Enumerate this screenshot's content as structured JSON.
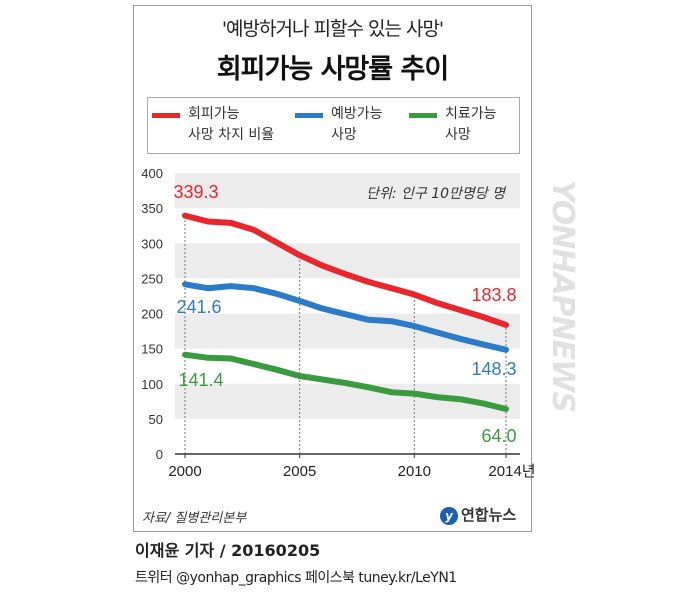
{
  "header": {
    "subtitle": "'예방하거나 피할수 있는 사망'",
    "title": "회피가능 사망률 추이"
  },
  "unit_note": "단위: 인구 10만명당 명",
  "source": "자료/ 질병관리본부",
  "logo": {
    "mark": "y",
    "text": "연합뉴스"
  },
  "byline": "이재윤 기자 / 20160205",
  "social": "트위터 @yonhap_graphics  페이스북 tuney.kr/LeYN1",
  "watermark": "YONHAPNEWS",
  "chart_data": {
    "type": "line",
    "title": "회피가능 사망률 추이",
    "ylim": [
      0,
      400
    ],
    "yticks": [
      "0",
      "50",
      "100",
      "150",
      "200",
      "250",
      "300",
      "350",
      "400"
    ],
    "xticks": [
      "2000",
      "2005",
      "2010",
      "2014년"
    ],
    "x": [
      2000,
      2001,
      2002,
      2003,
      2004,
      2005,
      2006,
      2007,
      2008,
      2009,
      2010,
      2011,
      2012,
      2013,
      2014
    ],
    "series": [
      {
        "name": "회피가능 사망 차지 비율",
        "legend_l1": "회피가능",
        "legend_l2": "사망 차지 비율",
        "color": "#e8262b",
        "values": [
          339.3,
          331,
          329,
          319,
          301,
          283,
          268,
          256,
          245,
          236,
          227,
          215,
          205,
          195,
          183.8
        ],
        "start_label": "339.3",
        "end_label": "183.8"
      },
      {
        "name": "예방가능 사망",
        "legend_l1": "예방가능",
        "legend_l2": "사망",
        "color": "#2b7bc8",
        "values": [
          241.6,
          236,
          239,
          236,
          228,
          218,
          207,
          199,
          191,
          189,
          182,
          173,
          164,
          156,
          148.3
        ],
        "start_label": "241.6",
        "end_label": "148.3"
      },
      {
        "name": "치료가능 사망",
        "legend_l1": "치료가능",
        "legend_l2": "사망",
        "color": "#3a9a3e",
        "values": [
          141.4,
          137,
          136,
          128,
          120,
          111,
          106,
          101,
          95,
          88,
          86,
          81,
          78,
          72,
          64.0
        ],
        "start_label": "141.4",
        "end_label": "64.0"
      }
    ]
  }
}
